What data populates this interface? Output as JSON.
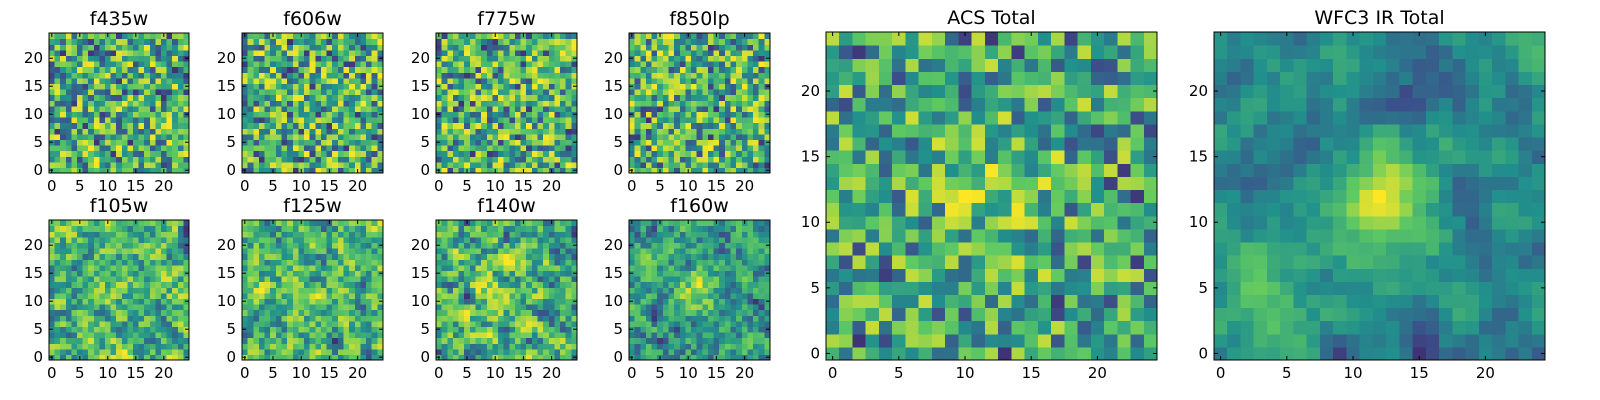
{
  "figure": {
    "colormap": "viridis",
    "colormap_stops": [
      "#440154",
      "#3b528b",
      "#21918c",
      "#5ec962",
      "#fde725"
    ],
    "background": "#ffffff"
  },
  "chart_data": [
    {
      "type": "heatmap",
      "title": "f435w",
      "grid": [
        25,
        25
      ],
      "xlim": [
        0,
        24
      ],
      "ylim": [
        0,
        24
      ],
      "xticks": [
        0,
        5,
        10,
        15,
        20
      ],
      "yticks": [
        0,
        5,
        10,
        15,
        20
      ],
      "origin": "lower",
      "seed": 11,
      "smooth": 0,
      "blobs": []
    },
    {
      "type": "heatmap",
      "title": "f606w",
      "grid": [
        25,
        25
      ],
      "xlim": [
        0,
        24
      ],
      "ylim": [
        0,
        24
      ],
      "xticks": [
        0,
        5,
        10,
        15,
        20
      ],
      "yticks": [
        0,
        5,
        10,
        15,
        20
      ],
      "origin": "lower",
      "seed": 23,
      "smooth": 0,
      "blobs": []
    },
    {
      "type": "heatmap",
      "title": "f775w",
      "grid": [
        25,
        25
      ],
      "xlim": [
        0,
        24
      ],
      "ylim": [
        0,
        24
      ],
      "xticks": [
        0,
        5,
        10,
        15,
        20
      ],
      "yticks": [
        0,
        5,
        10,
        15,
        20
      ],
      "origin": "lower",
      "seed": 37,
      "smooth": 0,
      "blobs": []
    },
    {
      "type": "heatmap",
      "title": "f850lp",
      "grid": [
        25,
        25
      ],
      "xlim": [
        0,
        24
      ],
      "ylim": [
        0,
        24
      ],
      "xticks": [
        0,
        5,
        10,
        15,
        20
      ],
      "yticks": [
        0,
        5,
        10,
        15,
        20
      ],
      "origin": "lower",
      "seed": 41,
      "smooth": 0,
      "blobs": []
    },
    {
      "type": "heatmap",
      "title": "f105w",
      "grid": [
        25,
        25
      ],
      "xlim": [
        0,
        24
      ],
      "ylim": [
        0,
        24
      ],
      "xticks": [
        0,
        5,
        10,
        15,
        20
      ],
      "yticks": [
        0,
        5,
        10,
        15,
        20
      ],
      "origin": "lower",
      "seed": 53,
      "smooth": 1,
      "blobs": []
    },
    {
      "type": "heatmap",
      "title": "f125w",
      "grid": [
        25,
        25
      ],
      "xlim": [
        0,
        24
      ],
      "ylim": [
        0,
        24
      ],
      "xticks": [
        0,
        5,
        10,
        15,
        20
      ],
      "yticks": [
        0,
        5,
        10,
        15,
        20
      ],
      "origin": "lower",
      "seed": 67,
      "smooth": 1,
      "blobs": []
    },
    {
      "type": "heatmap",
      "title": "f140w",
      "grid": [
        25,
        25
      ],
      "xlim": [
        0,
        24
      ],
      "ylim": [
        0,
        24
      ],
      "xticks": [
        0,
        5,
        10,
        15,
        20
      ],
      "yticks": [
        0,
        5,
        10,
        15,
        20
      ],
      "origin": "lower",
      "seed": 71,
      "smooth": 1,
      "blobs": []
    },
    {
      "type": "heatmap",
      "title": "f160w",
      "grid": [
        25,
        25
      ],
      "xlim": [
        0,
        24
      ],
      "ylim": [
        0,
        24
      ],
      "xticks": [
        0,
        5,
        10,
        15,
        20
      ],
      "yticks": [
        0,
        5,
        10,
        15,
        20
      ],
      "origin": "lower",
      "seed": 83,
      "smooth": 1,
      "blobs": [
        {
          "x": 12,
          "y": 12,
          "amp": 0.35,
          "sigma": 3
        }
      ]
    },
    {
      "type": "heatmap",
      "title": "ACS Total",
      "grid": [
        25,
        25
      ],
      "xlim": [
        0,
        24
      ],
      "ylim": [
        0,
        24
      ],
      "xticks": [
        0,
        5,
        10,
        15,
        20
      ],
      "yticks": [
        0,
        5,
        10,
        15,
        20
      ],
      "origin": "lower",
      "seed": 97,
      "smooth": 0,
      "blobs": [
        {
          "x": 12,
          "y": 13,
          "amp": 0.25,
          "sigma": 4
        }
      ]
    },
    {
      "type": "heatmap",
      "title": "WFC3 IR Total",
      "grid": [
        25,
        25
      ],
      "xlim": [
        0,
        24
      ],
      "ylim": [
        0,
        24
      ],
      "xticks": [
        0,
        5,
        10,
        15,
        20
      ],
      "yticks": [
        0,
        5,
        10,
        15,
        20
      ],
      "origin": "lower",
      "seed": 101,
      "smooth": 2,
      "blobs": [
        {
          "x": 12,
          "y": 12,
          "amp": 0.55,
          "sigma": 3
        },
        {
          "x": 2,
          "y": 5,
          "amp": 0.3,
          "sigma": 3
        }
      ]
    }
  ]
}
